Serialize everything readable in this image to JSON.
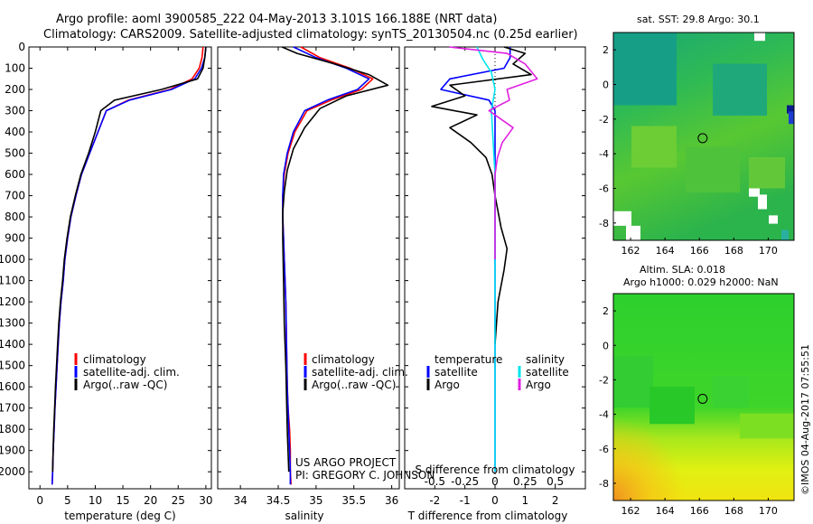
{
  "header": {
    "title_line1": "Argo profile: aoml 3900585_222 04-May-2013 3.101S 166.188E (NRT data)",
    "title_line2": "Climatology: CARS2009. Satellite-adjusted climatology: synTS_20130504.nc (0.25d earlier)"
  },
  "footer": {
    "project": "US ARGO PROJECT",
    "pi": "PI: GREGORY C. JOHNSON",
    "imos_stamp": "©IMOS 04-Aug-2017 07:55:51"
  },
  "colors": {
    "climatology": "#ff0000",
    "satellite": "#0000ff",
    "argo": "#000000",
    "salinity_satellite": "#00e5ee",
    "salinity_argo": "#e020e0"
  },
  "chart_data": [
    {
      "type": "line",
      "id": "temperature",
      "xlabel": "temperature (deg C)",
      "ylabel": "",
      "xlim": [
        -2,
        31
      ],
      "ylim": [
        2080,
        0
      ],
      "xticks": [
        0,
        5,
        10,
        15,
        20,
        25,
        30
      ],
      "yticks": [
        0,
        100,
        200,
        300,
        400,
        500,
        600,
        700,
        800,
        900,
        1000,
        1100,
        1200,
        1300,
        1400,
        1500,
        1600,
        1700,
        1800,
        1900,
        2000
      ],
      "legend": [
        "climatology",
        "satellite-adj. clim.",
        "Argo(..raw -QC)"
      ],
      "series": [
        {
          "name": "climatology",
          "color": "#ff0000",
          "x": [
            29.5,
            29.3,
            28.8,
            27.5,
            23.5,
            16.0,
            12.0,
            10.5,
            9.0,
            7.5,
            6.5,
            5.6,
            5.0,
            4.5,
            4.2,
            3.8,
            3.5,
            3.3,
            3.1,
            2.9,
            2.7,
            2.55,
            2.4,
            2.3,
            2.2
          ],
          "y": [
            0,
            50,
            100,
            150,
            200,
            250,
            300,
            400,
            500,
            600,
            700,
            800,
            900,
            1000,
            1100,
            1200,
            1300,
            1400,
            1500,
            1600,
            1700,
            1800,
            1900,
            2000,
            2060
          ]
        },
        {
          "name": "satellite-adj. clim.",
          "color": "#0000ff",
          "x": [
            30.0,
            29.8,
            29.2,
            28.0,
            23.8,
            16.2,
            12.0,
            10.5,
            9.0,
            7.5,
            6.5,
            5.6,
            5.0,
            4.5,
            4.2,
            3.8,
            3.5,
            3.3,
            3.1,
            2.9,
            2.7,
            2.55,
            2.4,
            2.3,
            2.2
          ],
          "y": [
            0,
            50,
            100,
            150,
            200,
            250,
            300,
            400,
            500,
            600,
            700,
            800,
            900,
            1000,
            1100,
            1200,
            1300,
            1400,
            1500,
            1600,
            1700,
            1800,
            1900,
            2000,
            2060
          ]
        },
        {
          "name": "Argo(..raw -QC)",
          "color": "#000000",
          "x": [
            30.0,
            29.8,
            29.5,
            28.5,
            22.0,
            13.5,
            11.0,
            10.0,
            8.8,
            7.4,
            6.4,
            5.5,
            4.9,
            4.4,
            4.1,
            3.7,
            3.4,
            3.2,
            3.0,
            2.8,
            2.65,
            2.5,
            2.38,
            2.28
          ],
          "y": [
            0,
            50,
            100,
            150,
            200,
            250,
            300,
            400,
            500,
            600,
            700,
            800,
            900,
            1000,
            1100,
            1200,
            1300,
            1400,
            1500,
            1600,
            1700,
            1800,
            1900,
            2000
          ]
        }
      ]
    },
    {
      "type": "line",
      "id": "salinity",
      "xlabel": "salinity",
      "xlim": [
        33.7,
        36.1
      ],
      "ylim": [
        2080,
        0
      ],
      "xticks": [
        34,
        34.5,
        35,
        35.5,
        36
      ],
      "legend": [
        "climatology",
        "satellite-adj. clim.",
        "Argo(..raw -QC)"
      ],
      "series": [
        {
          "name": "climatology",
          "color": "#ff0000",
          "x": [
            34.8,
            35.05,
            35.45,
            35.75,
            35.6,
            35.2,
            34.88,
            34.72,
            34.63,
            34.58,
            34.56,
            34.56,
            34.57,
            34.58,
            34.6,
            34.61,
            34.62,
            34.63,
            34.65,
            34.66,
            34.66,
            34.67
          ],
          "y": [
            0,
            50,
            100,
            150,
            200,
            250,
            300,
            400,
            500,
            600,
            700,
            800,
            900,
            1000,
            1200,
            1400,
            1600,
            1700,
            1800,
            1900,
            2000,
            2060
          ]
        },
        {
          "name": "satellite-adj. clim.",
          "color": "#0000ff",
          "x": [
            34.7,
            35.0,
            35.4,
            35.7,
            35.55,
            35.15,
            34.85,
            34.7,
            34.62,
            34.57,
            34.56,
            34.56,
            34.57,
            34.58,
            34.6,
            34.61,
            34.62,
            34.63,
            34.64,
            34.65,
            34.66,
            34.66
          ],
          "y": [
            0,
            50,
            100,
            150,
            200,
            250,
            300,
            400,
            500,
            600,
            700,
            800,
            900,
            1000,
            1200,
            1400,
            1600,
            1700,
            1800,
            1900,
            2000,
            2060
          ]
        },
        {
          "name": "Argo(..raw -QC)",
          "color": "#000000",
          "x": [
            34.55,
            34.75,
            35.25,
            35.7,
            35.95,
            35.4,
            35.05,
            34.85,
            34.7,
            34.62,
            34.58,
            34.56,
            34.56,
            34.57,
            34.58,
            34.6,
            34.62,
            34.64
          ],
          "y": [
            0,
            30,
            80,
            130,
            180,
            230,
            290,
            380,
            480,
            580,
            680,
            780,
            900,
            1100,
            1300,
            1500,
            1800,
            2000
          ]
        }
      ]
    },
    {
      "type": "line",
      "id": "difference",
      "xlabel": "T difference from climatology",
      "xlabel_top": "S difference from climatology",
      "xlim": [
        -3,
        3
      ],
      "ylim": [
        2080,
        0
      ],
      "xticks": [
        -2,
        -1,
        0,
        1,
        2
      ],
      "xticks_top": [
        -0.5,
        -0.25,
        0,
        0.25,
        0.5
      ],
      "legend_temperature": {
        "title": "temperature",
        "entries": [
          "satellite",
          "Argo"
        ]
      },
      "legend_salinity": {
        "title": "salinity",
        "entries": [
          "satellite",
          "Argo"
        ]
      },
      "series": [
        {
          "name": "temperature satellite",
          "color": "#0000ff",
          "x": [
            0.5,
            0.5,
            0.3,
            -1.5,
            -1.8,
            -0.2,
            0.0,
            0.0,
            0.0,
            0.0,
            0.0,
            0.0,
            0.0
          ],
          "y": [
            0,
            50,
            100,
            150,
            200,
            250,
            300,
            400,
            600,
            800,
            1000,
            1500,
            2000
          ]
        },
        {
          "name": "temperature Argo",
          "color": "#000000",
          "x": [
            0.3,
            1.0,
            0.6,
            1.2,
            -1.5,
            -1.0,
            -2.1,
            -0.6,
            -1.5,
            -0.8,
            -0.3,
            -0.1,
            0.0,
            0.2,
            0.4,
            0.3,
            0.1,
            0.0
          ],
          "y": [
            0,
            30,
            80,
            130,
            180,
            230,
            280,
            320,
            380,
            450,
            520,
            600,
            700,
            850,
            950,
            1050,
            1200,
            1400
          ]
        },
        {
          "name": "salinity satellite",
          "color": "#00e5ee",
          "x": [
            -0.15,
            -0.1,
            -0.03,
            0.0,
            -0.03,
            -0.02,
            0.0,
            0.0,
            0.0,
            0.0,
            0.0,
            0.0
          ],
          "y": [
            0,
            60,
            120,
            200,
            300,
            400,
            600,
            800,
            1000,
            1400,
            1800,
            2000
          ]
        },
        {
          "name": "salinity Argo",
          "color": "#e020e0",
          "x": [
            -0.38,
            0.1,
            0.25,
            0.35,
            0.1,
            0.12,
            -0.05,
            0.15,
            0.06,
            0.02,
            0.0,
            0.0,
            0.0
          ],
          "y": [
            0,
            30,
            80,
            150,
            200,
            250,
            300,
            380,
            450,
            520,
            600,
            800,
            1000
          ]
        }
      ]
    },
    {
      "type": "heatmap",
      "id": "sst_map",
      "title": "sat. SST: 29.8  Argo: 30.1",
      "xlim": [
        161,
        171.5
      ],
      "ylim": [
        -9,
        3
      ],
      "xticks": [
        162,
        164,
        166,
        168,
        170
      ],
      "yticks": [
        2,
        0,
        -2,
        -4,
        -6,
        -8
      ],
      "marker": {
        "lon": 166.188,
        "lat": -3.101
      }
    },
    {
      "type": "heatmap",
      "id": "sla_map",
      "title_line1": "Altim. SLA: 0.018",
      "title_line2": "Argo h1000: 0.029  h2000: NaN",
      "xlim": [
        161,
        171.5
      ],
      "ylim": [
        -9,
        3
      ],
      "xticks": [
        162,
        164,
        166,
        168,
        170
      ],
      "yticks": [
        2,
        0,
        -2,
        -4,
        -6,
        -8
      ],
      "marker": {
        "lon": 166.188,
        "lat": -3.101
      }
    }
  ]
}
